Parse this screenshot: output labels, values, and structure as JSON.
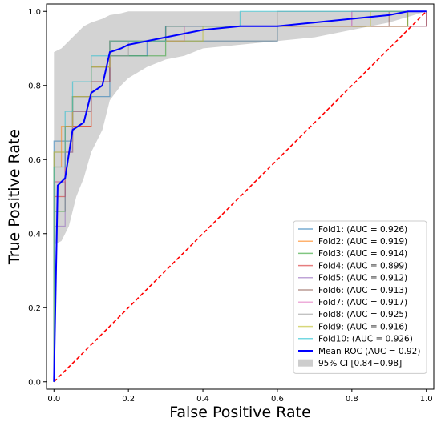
{
  "chart_data": {
    "type": "line",
    "xlabel": "False Positive Rate",
    "ylabel": "True Positive Rate",
    "xlim": [
      -0.02,
      1.02
    ],
    "ylim": [
      -0.02,
      1.02
    ],
    "x_ticks": [
      "0.0",
      "0.2",
      "0.4",
      "0.6",
      "0.8",
      "1.0"
    ],
    "y_ticks": [
      "0.0",
      "0.2",
      "0.4",
      "0.6",
      "0.8",
      "1.0"
    ],
    "grid": false,
    "legend_position": "lower-right",
    "chance_line": {
      "points": [
        [
          0,
          0
        ],
        [
          1,
          1
        ]
      ],
      "color": "#ff0000",
      "style": "dashed"
    },
    "series": [
      {
        "name": "Fold1: (AUC = 0.926)",
        "color": "#1f77b4",
        "points": [
          [
            0,
            0
          ],
          [
            0,
            0.65
          ],
          [
            0.05,
            0.65
          ],
          [
            0.05,
            0.77
          ],
          [
            0.15,
            0.77
          ],
          [
            0.15,
            0.88
          ],
          [
            0.25,
            0.88
          ],
          [
            0.25,
            0.92
          ],
          [
            0.6,
            0.92
          ],
          [
            0.6,
            0.96
          ],
          [
            1,
            0.96
          ],
          [
            1,
            1
          ]
        ]
      },
      {
        "name": "Fold2: (AUC = 0.919)",
        "color": "#ff7f0e",
        "points": [
          [
            0,
            0
          ],
          [
            0,
            0.58
          ],
          [
            0.02,
            0.58
          ],
          [
            0.02,
            0.69
          ],
          [
            0.1,
            0.69
          ],
          [
            0.1,
            0.85
          ],
          [
            0.15,
            0.85
          ],
          [
            0.15,
            0.92
          ],
          [
            0.35,
            0.92
          ],
          [
            0.35,
            0.96
          ],
          [
            0.95,
            0.96
          ],
          [
            0.95,
            1
          ],
          [
            1,
            1
          ]
        ]
      },
      {
        "name": "Fold3: (AUC = 0.914)",
        "color": "#2ca02c",
        "points": [
          [
            0,
            0
          ],
          [
            0,
            0.46
          ],
          [
            0.03,
            0.46
          ],
          [
            0.03,
            0.69
          ],
          [
            0.05,
            0.69
          ],
          [
            0.05,
            0.77
          ],
          [
            0.1,
            0.77
          ],
          [
            0.1,
            0.85
          ],
          [
            0.15,
            0.85
          ],
          [
            0.15,
            0.88
          ],
          [
            0.3,
            0.88
          ],
          [
            0.3,
            0.96
          ],
          [
            0.95,
            0.96
          ],
          [
            0.95,
            1
          ],
          [
            1,
            1
          ]
        ]
      },
      {
        "name": "Fold4: (AUC = 0.899)",
        "color": "#d62728",
        "points": [
          [
            0,
            0
          ],
          [
            0,
            0.5
          ],
          [
            0.03,
            0.5
          ],
          [
            0.03,
            0.62
          ],
          [
            0.05,
            0.62
          ],
          [
            0.05,
            0.69
          ],
          [
            0.1,
            0.69
          ],
          [
            0.1,
            0.81
          ],
          [
            0.15,
            0.81
          ],
          [
            0.15,
            0.92
          ],
          [
            0.3,
            0.92
          ],
          [
            0.3,
            0.96
          ],
          [
            1,
            0.96
          ],
          [
            1,
            1
          ]
        ]
      },
      {
        "name": "Fold5: (AUC = 0.912)",
        "color": "#9467bd",
        "points": [
          [
            0,
            0
          ],
          [
            0,
            0.42
          ],
          [
            0.03,
            0.42
          ],
          [
            0.03,
            0.62
          ],
          [
            0.05,
            0.62
          ],
          [
            0.05,
            0.73
          ],
          [
            0.1,
            0.73
          ],
          [
            0.1,
            0.81
          ],
          [
            0.15,
            0.81
          ],
          [
            0.15,
            0.92
          ],
          [
            0.35,
            0.92
          ],
          [
            0.35,
            0.96
          ],
          [
            0.8,
            0.96
          ],
          [
            0.8,
            1
          ],
          [
            1,
            1
          ]
        ]
      },
      {
        "name": "Fold6: (AUC = 0.913)",
        "color": "#8c564b",
        "points": [
          [
            0,
            0
          ],
          [
            0,
            0.54
          ],
          [
            0.03,
            0.54
          ],
          [
            0.03,
            0.69
          ],
          [
            0.05,
            0.69
          ],
          [
            0.05,
            0.73
          ],
          [
            0.1,
            0.73
          ],
          [
            0.1,
            0.81
          ],
          [
            0.15,
            0.81
          ],
          [
            0.15,
            0.92
          ],
          [
            0.3,
            0.92
          ],
          [
            0.3,
            0.96
          ],
          [
            0.9,
            0.96
          ],
          [
            0.9,
            1
          ],
          [
            1,
            1
          ]
        ]
      },
      {
        "name": "Fold7: (AUC = 0.917)",
        "color": "#e377c2",
        "points": [
          [
            0,
            0
          ],
          [
            0,
            0.54
          ],
          [
            0.03,
            0.54
          ],
          [
            0.03,
            0.69
          ],
          [
            0.05,
            0.69
          ],
          [
            0.05,
            0.77
          ],
          [
            0.1,
            0.77
          ],
          [
            0.1,
            0.85
          ],
          [
            0.15,
            0.85
          ],
          [
            0.15,
            0.92
          ],
          [
            0.35,
            0.92
          ],
          [
            0.35,
            0.96
          ],
          [
            0.8,
            0.96
          ],
          [
            0.8,
            1
          ],
          [
            1,
            1
          ]
        ]
      },
      {
        "name": "Fold8: (AUC = 0.925)",
        "color": "#999999",
        "points": [
          [
            0,
            0
          ],
          [
            0,
            0.62
          ],
          [
            0.05,
            0.62
          ],
          [
            0.05,
            0.77
          ],
          [
            0.1,
            0.77
          ],
          [
            0.1,
            0.85
          ],
          [
            0.15,
            0.85
          ],
          [
            0.15,
            0.88
          ],
          [
            0.2,
            0.88
          ],
          [
            0.2,
            0.92
          ],
          [
            0.6,
            0.92
          ],
          [
            0.6,
            1
          ],
          [
            1,
            1
          ]
        ]
      },
      {
        "name": "Fold9: (AUC = 0.916)",
        "color": "#bcbd22",
        "points": [
          [
            0,
            0
          ],
          [
            0,
            0.62
          ],
          [
            0.03,
            0.62
          ],
          [
            0.03,
            0.69
          ],
          [
            0.05,
            0.69
          ],
          [
            0.05,
            0.77
          ],
          [
            0.1,
            0.77
          ],
          [
            0.1,
            0.85
          ],
          [
            0.15,
            0.85
          ],
          [
            0.15,
            0.92
          ],
          [
            0.4,
            0.92
          ],
          [
            0.4,
            0.96
          ],
          [
            0.85,
            0.96
          ],
          [
            0.85,
            1
          ],
          [
            1,
            1
          ]
        ]
      },
      {
        "name": "Fold10: (AUC = 0.926)",
        "color": "#17becf",
        "points": [
          [
            0,
            0
          ],
          [
            0,
            0.58
          ],
          [
            0.03,
            0.58
          ],
          [
            0.03,
            0.73
          ],
          [
            0.05,
            0.73
          ],
          [
            0.05,
            0.81
          ],
          [
            0.1,
            0.81
          ],
          [
            0.1,
            0.88
          ],
          [
            0.15,
            0.88
          ],
          [
            0.15,
            0.92
          ],
          [
            0.3,
            0.92
          ],
          [
            0.3,
            0.96
          ],
          [
            0.5,
            0.96
          ],
          [
            0.5,
            1
          ],
          [
            1,
            1
          ]
        ]
      },
      {
        "name": "Mean ROC (AUC = 0.92)",
        "color": "#0000ff",
        "width": 2,
        "points": [
          [
            0,
            0
          ],
          [
            0.01,
            0.53
          ],
          [
            0.03,
            0.55
          ],
          [
            0.05,
            0.68
          ],
          [
            0.08,
            0.7
          ],
          [
            0.1,
            0.78
          ],
          [
            0.13,
            0.8
          ],
          [
            0.15,
            0.89
          ],
          [
            0.18,
            0.9
          ],
          [
            0.2,
            0.91
          ],
          [
            0.25,
            0.92
          ],
          [
            0.3,
            0.93
          ],
          [
            0.35,
            0.94
          ],
          [
            0.4,
            0.95
          ],
          [
            0.5,
            0.96
          ],
          [
            0.6,
            0.96
          ],
          [
            0.7,
            0.97
          ],
          [
            0.8,
            0.98
          ],
          [
            0.9,
            0.99
          ],
          [
            0.95,
            1
          ],
          [
            1,
            1
          ]
        ]
      }
    ],
    "ci_band": {
      "name": "95% CI [0.84−0.98]",
      "color": "#c0c0c0",
      "x": [
        0,
        0.02,
        0.04,
        0.06,
        0.08,
        0.1,
        0.13,
        0.15,
        0.18,
        0.2,
        0.25,
        0.3,
        0.35,
        0.4,
        0.5,
        0.6,
        0.7,
        0.8,
        0.9,
        1.0
      ],
      "upper": [
        0.89,
        0.9,
        0.92,
        0.94,
        0.96,
        0.97,
        0.98,
        0.99,
        0.995,
        1.0,
        1.0,
        1.0,
        1.0,
        1.0,
        1.0,
        1.0,
        1.0,
        1.0,
        1.0,
        1.0
      ],
      "lower": [
        0.37,
        0.38,
        0.42,
        0.5,
        0.55,
        0.62,
        0.68,
        0.76,
        0.8,
        0.82,
        0.85,
        0.87,
        0.88,
        0.9,
        0.91,
        0.92,
        0.93,
        0.95,
        0.97,
        1.0
      ]
    }
  }
}
